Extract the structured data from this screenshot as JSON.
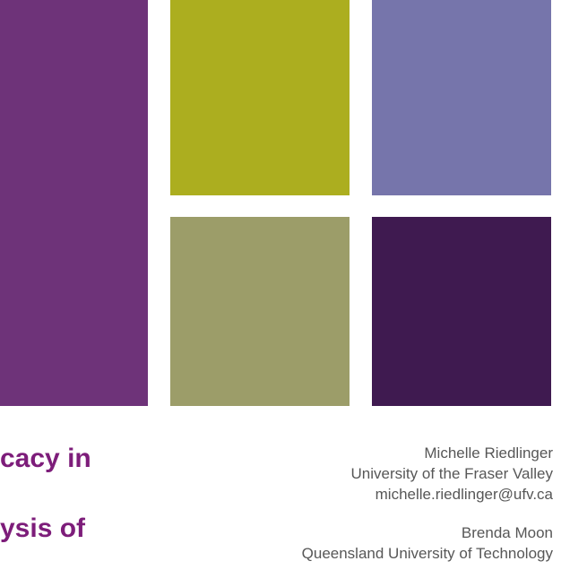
{
  "blocks": {
    "left": {
      "color": "#6e3379"
    },
    "top_mid": {
      "color": "#acae1f"
    },
    "top_right": {
      "color": "#7675ab"
    },
    "bottom_mid": {
      "color": "#9c9d69"
    },
    "bottom_right": {
      "color": "#3f1a50"
    }
  },
  "title": {
    "line1": "cacy in",
    "line2": "ysis of",
    "color": "#7d1d7a",
    "fontsize": 30,
    "weight": "bold"
  },
  "authors": [
    {
      "name": "Michelle Riedlinger",
      "affiliation": "University of the Fraser Valley",
      "email": "michelle.riedlinger@ufv.ca"
    },
    {
      "name": "Brenda Moon",
      "affiliation": "Queensland University of Technology",
      "email": ""
    }
  ],
  "author_text": {
    "color": "#575757",
    "fontsize": 17
  },
  "background_color": "#ffffff"
}
